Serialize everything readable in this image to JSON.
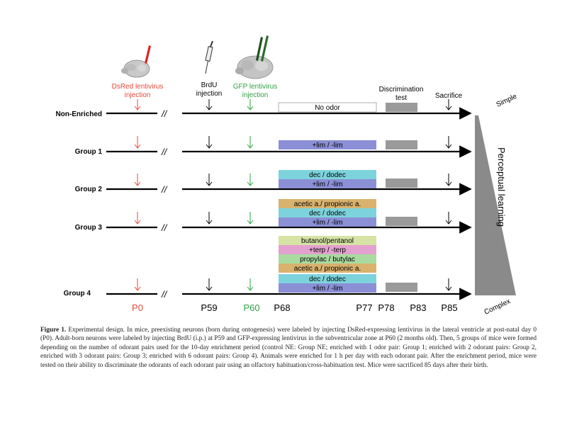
{
  "annotations": {
    "dsred_title": "DsRed lentivirus",
    "dsred_sub": "injection",
    "brdu_title": "BrdU",
    "brdu_sub": "injection",
    "gfp_title": "GFP lentivirus",
    "gfp_sub": "injection",
    "disc_title": "Discrimination",
    "disc_sub": "test",
    "sacrifice": "Sacrifice"
  },
  "groups": {
    "ne": "Non-Enriched",
    "g1": "Group 1",
    "g2": "Group 2",
    "g3": "Group 3",
    "g4": "Group 4"
  },
  "odor_boxes": {
    "no_odor": "No odor",
    "lim": "+lim / -lim",
    "dec": "dec / dodec",
    "acetic": "acetic a./ propionic a.",
    "propylac": "propylac / butylac",
    "terp": "+terp / -terp",
    "butanol": "butanol/pentanol"
  },
  "timepoints": {
    "p0": "P0",
    "p59": "P59",
    "p60": "P60",
    "p68": "P68",
    "p77": "P77",
    "p78": "P78",
    "p83": "P83",
    "p85": "P85"
  },
  "gradient": {
    "simple": "Simple",
    "complex": "Complex",
    "perceptual": "Perceptual learning"
  },
  "colors": {
    "red": "#e8473a",
    "green": "#2ea043",
    "lim": "#8b8fd6",
    "dec": "#7dd3dc",
    "acetic": "#d9b26e",
    "propylac": "#a9dba0",
    "terp": "#e3a1cf",
    "butanol": "#d6e3a4",
    "grey": "#9a9a9a"
  },
  "caption": {
    "label": "Figure 1.",
    "text": " Experimental design. In mice, preexisting neurons (born during ontogenesis) were labeled by injecting DsRed-expressing lentivirus in the lateral ventricle at post-natal day 0 (P0). Adult-born neurons were labeled by injecting BrdU (i.p.) at P59 and GFP-expressing lentivirus in the subventricular zone at P60 (2 months old). Then, 5 groups of mice were formed depending on the number of odorant pairs used for the 10-day enrichment period (control NE: Group NE; enriched with 1 odor pair: Group 1; enriched with 2 odorant pairs: Group 2, enriched with 3 odorant pairs: Group 3; enriched with 6 odorant pairs: Group 4). Animals were enriched for 1 h per day with each odorant pair. After the enrichment period, mice were tested on their ability to discriminate the odorants of each odorant pair using an olfactory habituation/cross-habituation test. Mice were sacrificed 85 days after their birth."
  }
}
